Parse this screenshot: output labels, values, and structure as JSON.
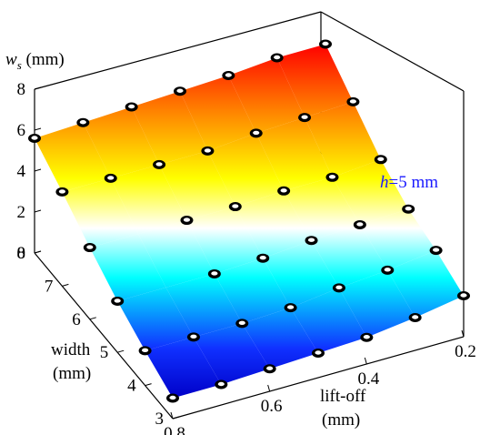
{
  "chart_data": {
    "type": "surface",
    "zlabel": "w_s (mm)",
    "zlabel_main": "w",
    "zlabel_sub": "s",
    "zlabel_unit": " (mm)",
    "ylabel_line1": "width",
    "ylabel_line2": "(mm)",
    "xlabel_line1": "lift-off",
    "xlabel_line2": "(mm)",
    "annotation": {
      "italic": "h",
      "rest": "=5 mm"
    },
    "z_ticks": [
      "0",
      "2",
      "4",
      "6",
      "8"
    ],
    "width_ticks": [
      "3",
      "4",
      "5",
      "6",
      "7",
      "8"
    ],
    "liftoff_ticks": [
      "0.8",
      "0.6",
      "0.4",
      "0.2"
    ],
    "zlim": [
      0,
      8
    ],
    "width_range": [
      3,
      8
    ],
    "liftoff_range": [
      0.2,
      0.8
    ],
    "colormap": "jet",
    "grid": false,
    "points": [
      {
        "liftoff": 0.8,
        "width": 3,
        "ws": 1.0
      },
      {
        "liftoff": 0.7,
        "width": 3,
        "ws": 1.0
      },
      {
        "liftoff": 0.6,
        "width": 3,
        "ws": 1.1
      },
      {
        "liftoff": 0.5,
        "width": 3,
        "ws": 1.2
      },
      {
        "liftoff": 0.4,
        "width": 3,
        "ws": 1.3
      },
      {
        "liftoff": 0.3,
        "width": 3,
        "ws": 1.6
      },
      {
        "liftoff": 0.2,
        "width": 3,
        "ws": 2.0
      },
      {
        "liftoff": 0.8,
        "width": 4,
        "ws": 1.7
      },
      {
        "liftoff": 0.7,
        "width": 4,
        "ws": 1.7
      },
      {
        "liftoff": 0.6,
        "width": 4,
        "ws": 1.7
      },
      {
        "liftoff": 0.5,
        "width": 4,
        "ws": 1.8
      },
      {
        "liftoff": 0.4,
        "width": 4,
        "ws": 2.1
      },
      {
        "liftoff": 0.3,
        "width": 4,
        "ws": 2.3
      },
      {
        "liftoff": 0.2,
        "width": 4,
        "ws": 2.6
      },
      {
        "liftoff": 0.8,
        "width": 5,
        "ws": 2.5
      },
      {
        "liftoff": 0.6,
        "width": 5,
        "ws": 2.5
      },
      {
        "liftoff": 0.5,
        "width": 5,
        "ws": 2.6
      },
      {
        "liftoff": 0.4,
        "width": 5,
        "ws": 2.8
      },
      {
        "liftoff": 0.3,
        "width": 5,
        "ws": 2.9
      },
      {
        "liftoff": 0.2,
        "width": 5,
        "ws": 3.0
      },
      {
        "liftoff": 0.8,
        "width": 6,
        "ws": 3.5
      },
      {
        "liftoff": 0.6,
        "width": 6,
        "ws": 3.5
      },
      {
        "liftoff": 0.5,
        "width": 6,
        "ws": 3.5
      },
      {
        "liftoff": 0.4,
        "width": 6,
        "ws": 3.6
      },
      {
        "liftoff": 0.3,
        "width": 6,
        "ws": 3.6
      },
      {
        "liftoff": 0.2,
        "width": 6,
        "ws": 3.8
      },
      {
        "liftoff": 0.8,
        "width": 7,
        "ws": 4.6
      },
      {
        "liftoff": 0.7,
        "width": 7,
        "ws": 4.6
      },
      {
        "liftoff": 0.6,
        "width": 7,
        "ws": 4.6
      },
      {
        "liftoff": 0.5,
        "width": 7,
        "ws": 4.6
      },
      {
        "liftoff": 0.4,
        "width": 7,
        "ws": 4.8
      },
      {
        "liftoff": 0.3,
        "width": 7,
        "ws": 4.9
      },
      {
        "liftoff": 0.2,
        "width": 7,
        "ws": 5.0
      },
      {
        "liftoff": 0.8,
        "width": 8,
        "ws": 5.6
      },
      {
        "liftoff": 0.7,
        "width": 8,
        "ws": 5.7
      },
      {
        "liftoff": 0.6,
        "width": 8,
        "ws": 5.8
      },
      {
        "liftoff": 0.5,
        "width": 8,
        "ws": 5.9
      },
      {
        "liftoff": 0.4,
        "width": 8,
        "ws": 6.0
      },
      {
        "liftoff": 0.3,
        "width": 8,
        "ws": 6.2
      },
      {
        "liftoff": 0.2,
        "width": 8,
        "ws": 6.2
      }
    ]
  }
}
